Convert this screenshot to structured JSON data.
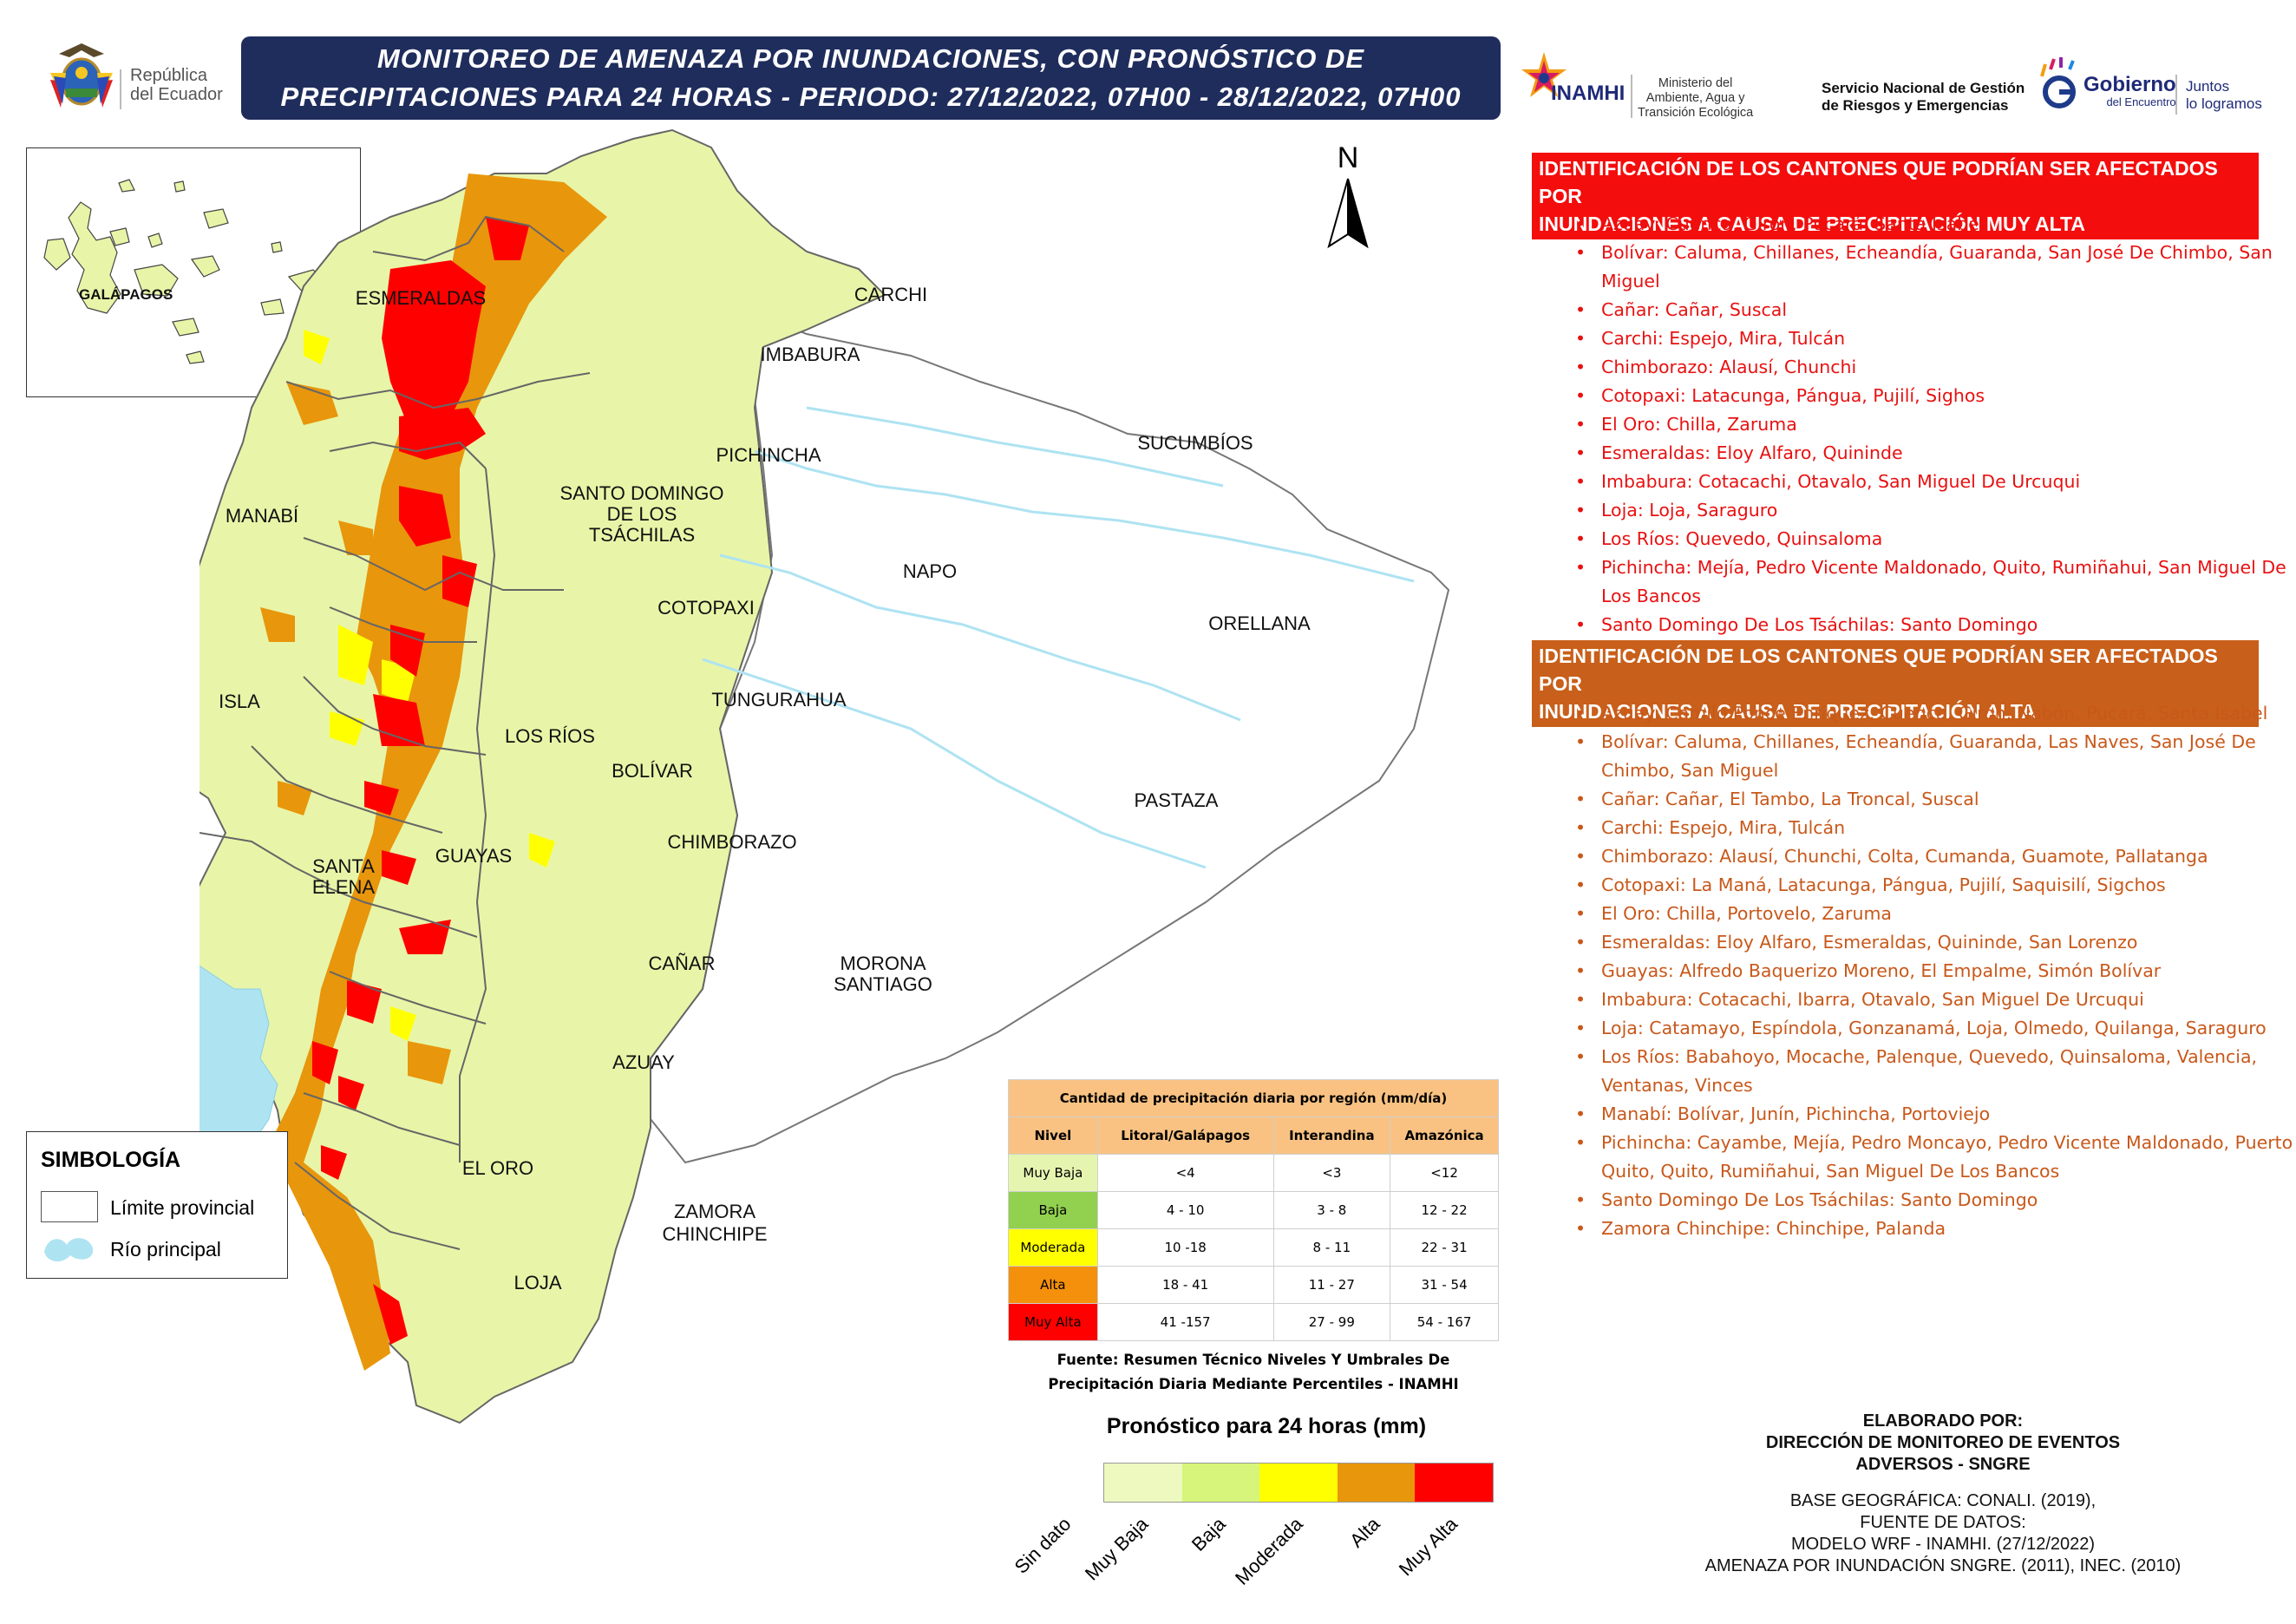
{
  "header": {
    "title_line1": "MONITOREO DE AMENAZA POR INUNDACIONES, CON PRONÓSTICO DE",
    "title_line2": "PRECIPITACIONES  PARA 24  HORAS - PERIODO: 27/12/2022, 07H00 - 28/12/2022, 07H00",
    "republic_line1": "República",
    "republic_line2": "del Ecuador",
    "inamhi": "INAMHI",
    "ministerio_line1": "Ministerio del",
    "ministerio_line2": "Ambiente, Agua y",
    "ministerio_line3": "Transición Ecológica",
    "sngre_line1": "Servicio Nacional de Gestión",
    "sngre_line2": "de Riesgos y Emergencias",
    "gobierno": "Gobierno",
    "gobierno_sub": "del Encuentro",
    "juntos_line1": "Juntos",
    "juntos_line2": "lo logramos"
  },
  "inset": {
    "label": "GALÁPAGOS"
  },
  "north_label": "N",
  "provinces": {
    "esmeraldas": "ESMERALDAS",
    "carchi": "CARCHI",
    "imbabura": "IMBABURA",
    "sucumbios": "SUCUMBÍOS",
    "pichincha": "PICHINCHA",
    "manabi": "MANABÍ",
    "santo_domingo_1": "SANTO DOMINGO",
    "santo_domingo_2": "DE LOS",
    "santo_domingo_3": "TSÁCHILAS",
    "napo": "NAPO",
    "cotopaxi": "COTOPAXI",
    "orellana": "ORELLANA",
    "isla": "ISLA",
    "tungurahua": "TUNGURAHUA",
    "los_rios": "LOS RÍOS",
    "bolivar": "BOLÍVAR",
    "pastaza": "PASTAZA",
    "santa_elena_1": "SANTA",
    "santa_elena_2": "ELENA",
    "guayas": "GUAYAS",
    "chimborazo": "CHIMBORAZO",
    "canar": "CAÑAR",
    "morona_1": "MORONA",
    "morona_2": "SANTIAGO",
    "azuay": "AZUAY",
    "el_oro": "EL ORO",
    "zamora_1": "ZAMORA",
    "zamora_2": "CHINCHIPE",
    "loja": "LOJA"
  },
  "muy_alta": {
    "header_line1": "IDENTIFICACIÓN DE LOS CANTONES QUE PODRÍAN SER AFECTADOS POR",
    "header_line2": "INUNDACIONES A CAUSA DE  PRECIPITACIÓN MUY ALTA",
    "items": [
      "Azuay: Cuenca, Girón, Pucará, Santa Isabel",
      "Bolívar: Caluma, Chillanes, Echeandía, Guaranda, San José De Chimbo, San Miguel",
      "Cañar: Cañar, Suscal",
      "Carchi: Espejo, Mira, Tulcán",
      "Chimborazo: Alausí, Chunchi",
      "Cotopaxi: Latacunga, Pángua, Pujilí, Sighos",
      "El Oro: Chilla, Zaruma",
      "Esmeraldas: Eloy Alfaro, Quininde",
      "Imbabura: Cotacachi, Otavalo, San Miguel De Urcuqui",
      "Loja: Loja, Saraguro",
      "Los Ríos: Quevedo, Quinsaloma",
      "Pichincha: Mejía, Pedro Vicente Maldonado, Quito, Rumiñahui, San Miguel De Los Bancos",
      "Santo Domingo De Los Tsáchilas: Santo Domingo"
    ]
  },
  "alta": {
    "header_line1": "IDENTIFICACIÓN DE LOS CANTONES QUE PODRÍAN SER AFECTADOS POR",
    "header_line2": "INUNDACIONES A CAUSA DE  PRECIPITACIÓN  ALTA",
    "items": [
      "Azuay: Camilo Ponce Enríquez, Cuenca, Girón, Nabón, Pucará, Santa Isabel",
      "Bolívar: Caluma, Chillanes, Echeandía, Guaranda, Las Naves, San José De Chimbo, San Miguel",
      "Cañar: Cañar, El Tambo, La Troncal, Suscal",
      "Carchi: Espejo, Mira, Tulcán",
      "Chimborazo: Alausí, Chunchi, Colta, Cumanda, Guamote, Pallatanga",
      "Cotopaxi: La Maná, Latacunga, Pángua, Pujilí, Saquisilí, Sigchos",
      "El Oro: Chilla, Portovelo, Zaruma",
      "Esmeraldas: Eloy Alfaro, Esmeraldas, Quininde, San Lorenzo",
      "Guayas: Alfredo Baquerizo Moreno, El Empalme, Simón Bolívar",
      "Imbabura: Cotacachi, Ibarra, Otavalo, San Miguel De Urcuqui",
      "Loja: Catamayo, Espíndola, Gonzanamá, Loja, Olmedo, Quilanga, Saraguro",
      "Los Ríos: Babahoyo, Mocache, Palenque, Quevedo, Quinsaloma, Valencia, Ventanas, Vinces",
      "Manabí: Bolívar, Junín, Pichincha, Portoviejo",
      "Pichincha: Cayambe, Mejía, Pedro Moncayo, Pedro Vicente Maldonado, Puerto Quito, Quito, Rumiñahui, San Miguel De Los Bancos",
      "Santo Domingo De Los Tsáchilas: Santo Domingo",
      "Zamora Chinchipe: Chinchipe, Palanda"
    ]
  },
  "simbologia": {
    "title": "SIMBOLOGÍA",
    "limite": "Límite provincial",
    "rio": "Río principal"
  },
  "table": {
    "title": "Cantidad de precipitación diaria por región (mm/día)",
    "headers": [
      "Nivel",
      "Litoral/Galápagos",
      "Interandina",
      "Amazónica"
    ],
    "rows": [
      {
        "nivel": "Muy Baja",
        "litoral": "<4",
        "interandina": "<3",
        "amazonica": "<12",
        "color": "#e5f5b0"
      },
      {
        "nivel": "Baja",
        "litoral": "4 - 10",
        "interandina": "3 - 8",
        "amazonica": "12 - 22",
        "color": "#92d050"
      },
      {
        "nivel": "Moderada",
        "litoral": "10 -18",
        "interandina": "8 - 11",
        "amazonica": "22 - 31",
        "color": "#ffff00"
      },
      {
        "nivel": "Alta",
        "litoral": "18 - 41",
        "interandina": "11 - 27",
        "amazonica": "31 - 54",
        "color": "#f4900c"
      },
      {
        "nivel": "Muy Alta",
        "litoral": "41 -157",
        "interandina": "27 - 99",
        "amazonica": "54 - 167",
        "color": "#ff0000"
      }
    ],
    "source_line1": "Fuente: Resumen Técnico Niveles Y Umbrales De",
    "source_line2": "Precipitación Diaria Mediante Percentiles - INAMHI"
  },
  "colorbar": {
    "title": "Pronóstico para 24 horas (mm)",
    "labels": [
      "Sin dato",
      "Muy Baja",
      "Baja",
      "Moderada",
      "Alta",
      "Muy Alta"
    ],
    "colors": [
      "#edf9bf",
      "#d6f57a",
      "#ffff00",
      "#e8960c",
      "#ff0000"
    ]
  },
  "credits": {
    "line1": "ELABORADO POR:",
    "line2": "DIRECCIÓN DE MONITOREO DE EVENTOS",
    "line3": "ADVERSOS - SNGRE",
    "base1": "BASE GEOGRÁFICA: CONALI. (2019),",
    "base2": "FUENTE DE DATOS:",
    "base3": "MODELO WRF - INAMHI. (27/12/2022)",
    "base4": "AMENAZA POR INUNDACIÓN SNGRE. (2011), INEC. (2010)"
  },
  "colors": {
    "title_bg": "#1f2d5c",
    "land_coast": "#e8f5a8",
    "land_amazon": "#ffffff",
    "river": "#aee3f2"
  }
}
